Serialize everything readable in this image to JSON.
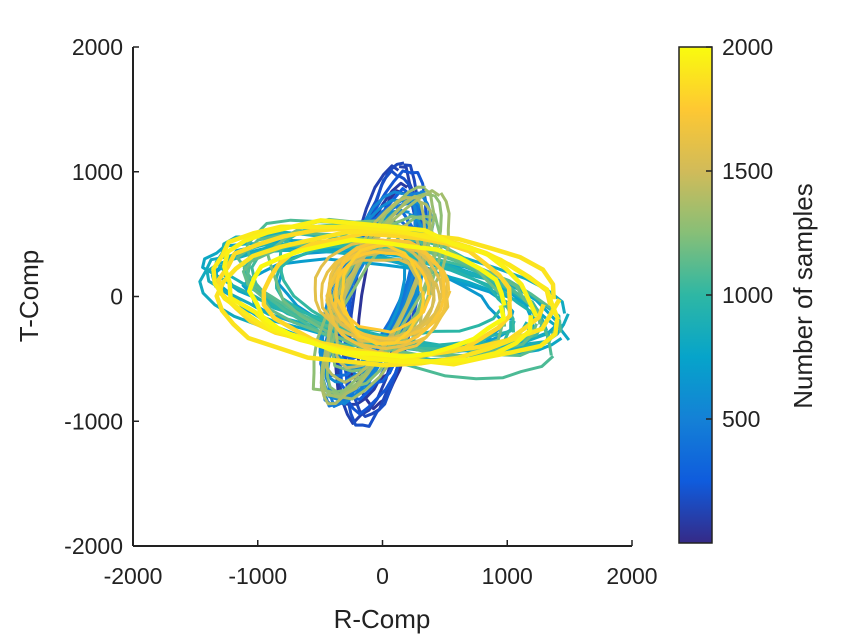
{
  "chart_data": {
    "type": "line",
    "description_kind": "particle-motion hodogram, colored by sample index",
    "xlabel": "R-Comp",
    "ylabel": "T-Comp",
    "xlim": [
      -2000,
      2000
    ],
    "ylim": [
      -2000,
      2000
    ],
    "xticks": [
      "-2000",
      "-1000",
      "0",
      "1000",
      "2000"
    ],
    "yticks": [
      "-2000",
      "-1000",
      "0",
      "1000",
      "2000"
    ],
    "grid": false,
    "colorbar": {
      "label": "Number of samples",
      "range": [
        0,
        2000
      ],
      "ticks": [
        "500",
        "1000",
        "1500",
        "2000"
      ],
      "colormap": "parula",
      "colors": [
        "#352a87",
        "#0f5cdd",
        "#1481d6",
        "#06a4ca",
        "#2eb7a4",
        "#87bf77",
        "#d1bb59",
        "#fec832",
        "#f9fb0e"
      ]
    },
    "series": [
      {
        "sample_start": 0,
        "sample_end": 300,
        "orientation_deg": 78,
        "major_axis": 1050,
        "minor_axis": 300,
        "center": [
          0,
          0
        ]
      },
      {
        "sample_start": 300,
        "sample_end": 650,
        "orientation_deg": 70,
        "major_axis": 900,
        "minor_axis": 330,
        "center": [
          -80,
          0
        ]
      },
      {
        "sample_start": 650,
        "sample_end": 1000,
        "orientation_deg": -10,
        "major_axis": 1450,
        "minor_axis": 430,
        "center": [
          0,
          0
        ]
      },
      {
        "sample_start": 1000,
        "sample_end": 1200,
        "orientation_deg": -15,
        "major_axis": 1350,
        "minor_axis": 520,
        "center": [
          80,
          0
        ]
      },
      {
        "sample_start": 1200,
        "sample_end": 1450,
        "orientation_deg": 65,
        "major_axis": 950,
        "minor_axis": 340,
        "center": [
          0,
          0
        ]
      },
      {
        "sample_start": 1450,
        "sample_end": 1800,
        "orientation_deg": 0,
        "major_axis": 500,
        "minor_axis": 450,
        "center": [
          0,
          0
        ]
      },
      {
        "sample_start": 1800,
        "sample_end": 2000,
        "orientation_deg": -4,
        "major_axis": 1430,
        "minor_axis": 560,
        "center": [
          0,
          0
        ]
      }
    ]
  }
}
